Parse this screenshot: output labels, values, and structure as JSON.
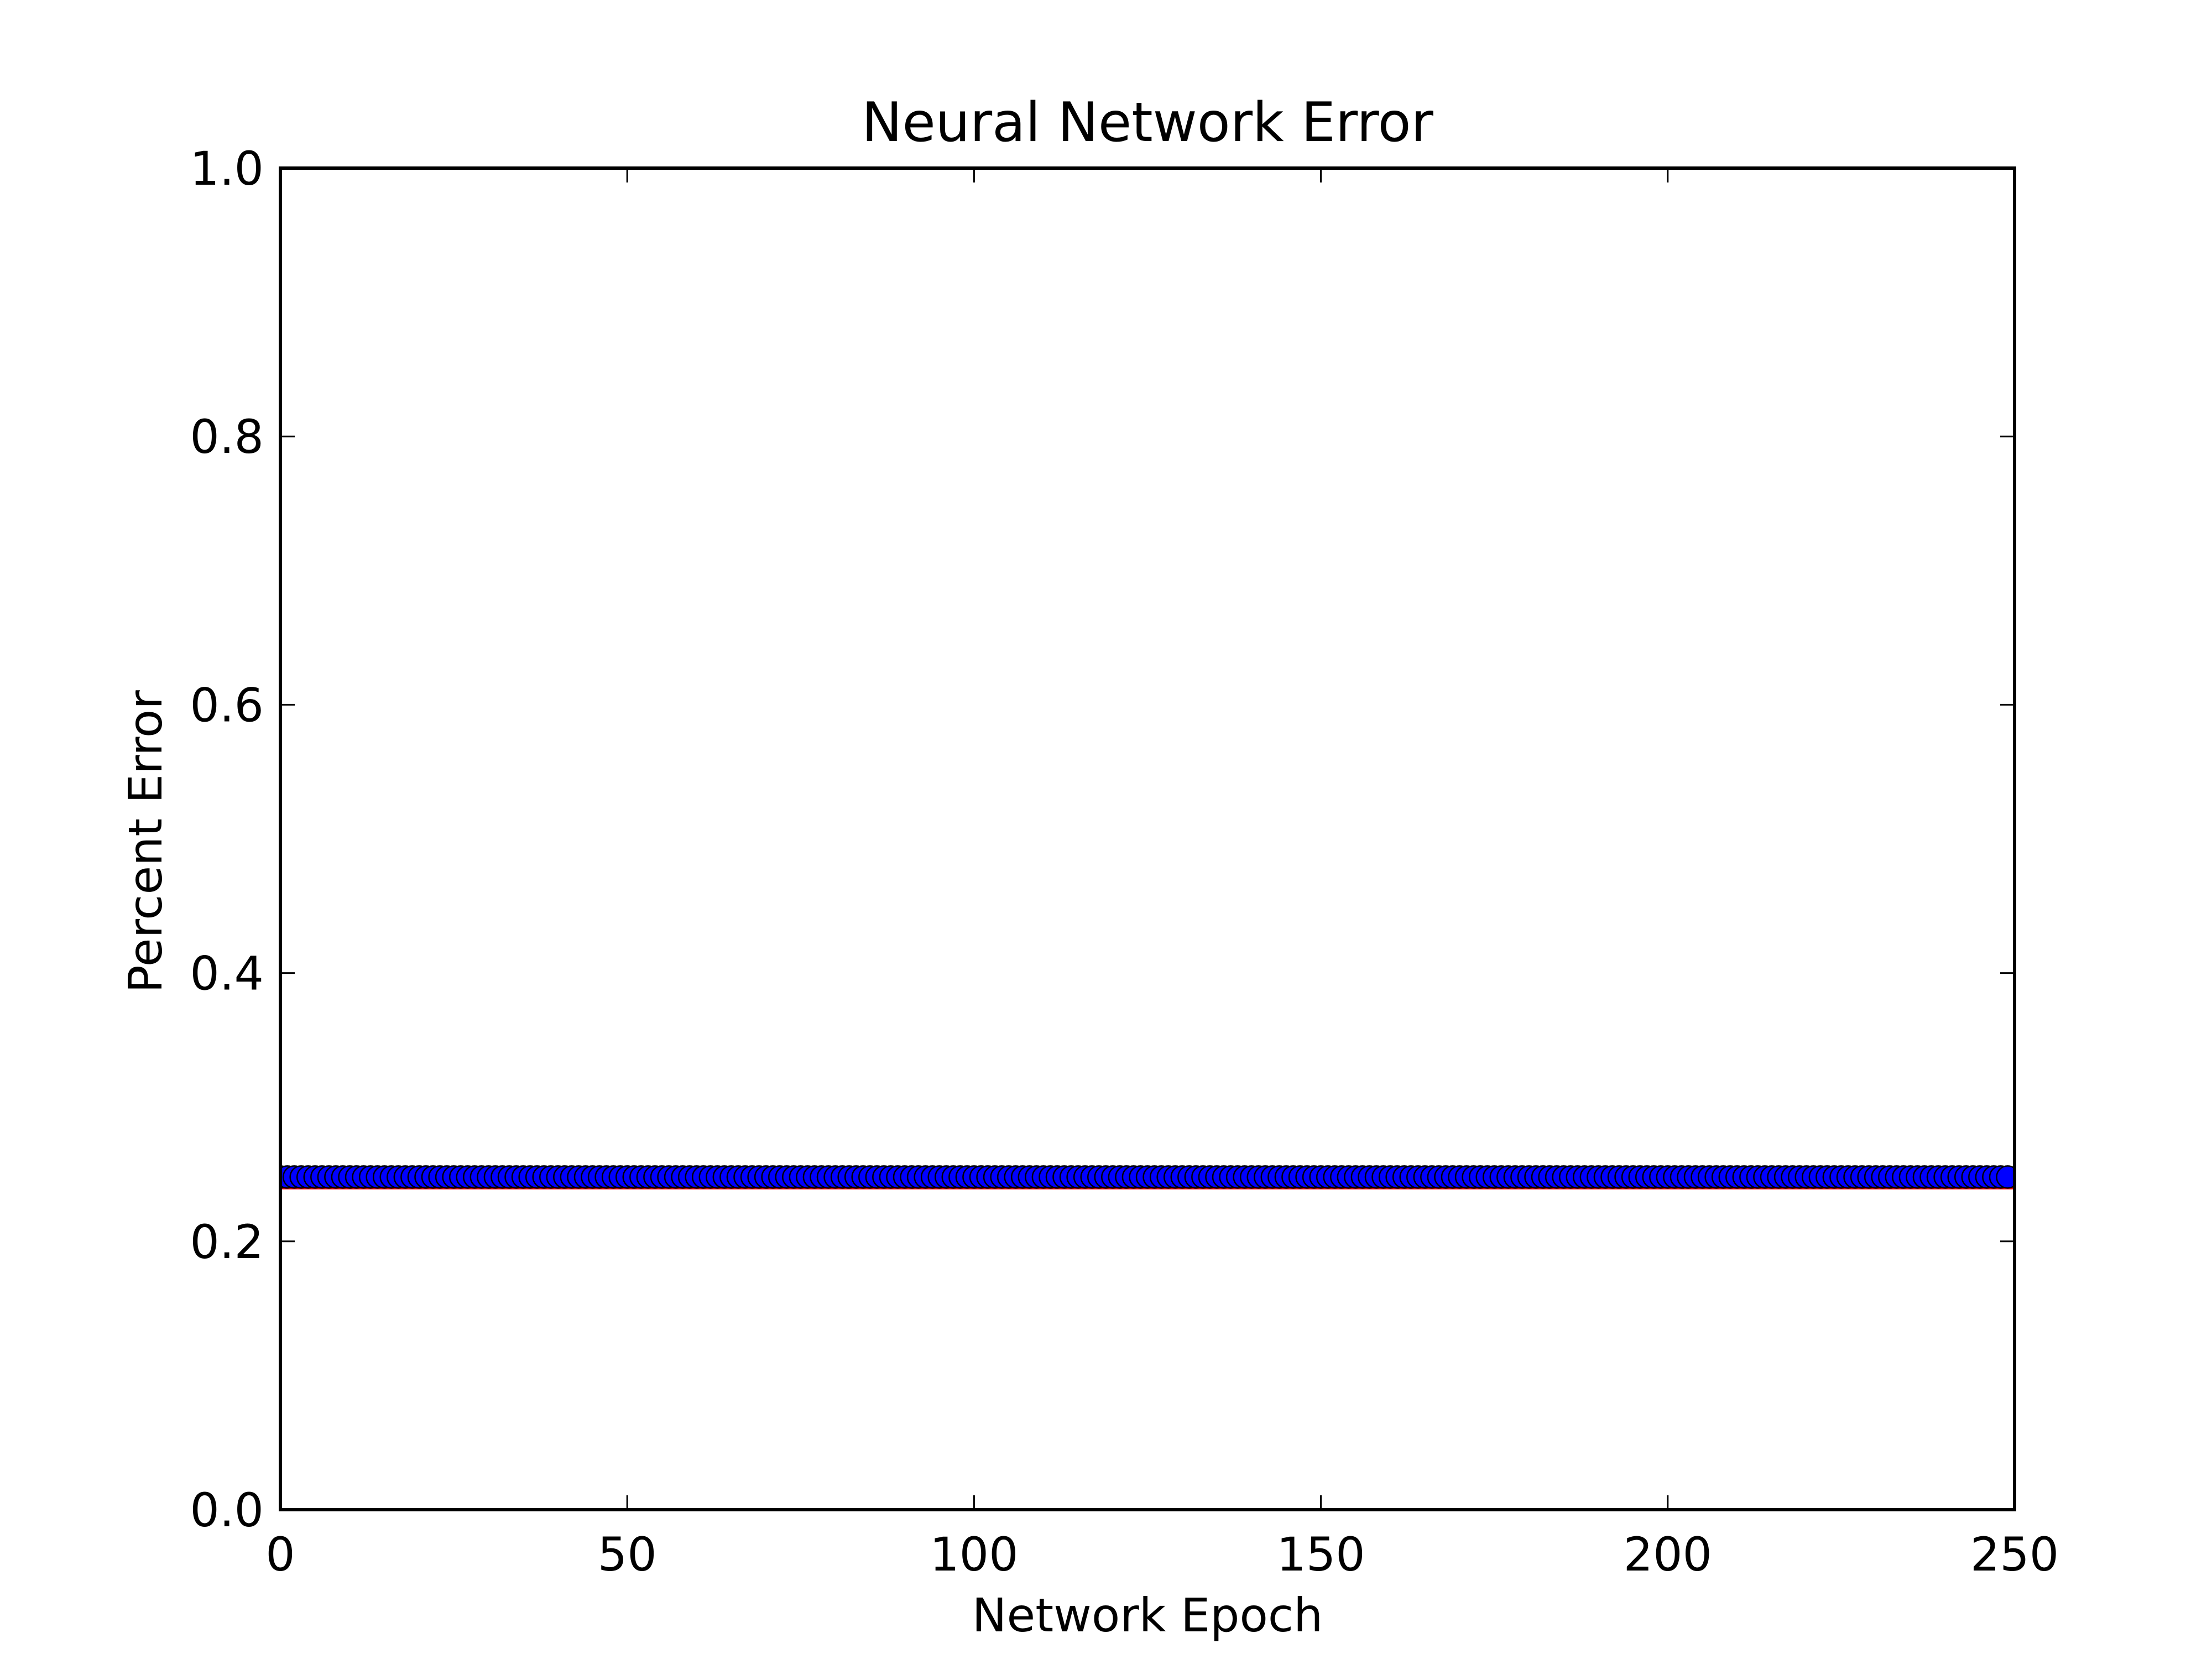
{
  "chart_data": {
    "type": "scatter",
    "title": "Neural Network Error",
    "xlabel": "Network Epoch",
    "ylabel": "Percent Error",
    "xlim": [
      0,
      250
    ],
    "ylim": [
      0.0,
      1.0
    ],
    "x_ticks": [
      0,
      50,
      100,
      150,
      200,
      250
    ],
    "x_tick_labels": [
      "0",
      "50",
      "100",
      "150",
      "200",
      "250"
    ],
    "y_ticks": [
      0.0,
      0.2,
      0.4,
      0.6,
      0.8,
      1.0
    ],
    "y_tick_labels": [
      "0.0",
      "0.2",
      "0.4",
      "0.6",
      "0.8",
      "1.0"
    ],
    "grid": false,
    "series": [
      {
        "marker": "circle",
        "color": "#0000ff",
        "edge_color": "#000000",
        "x_start": 0,
        "x_end": 249,
        "x_step": 1,
        "y": 0.248
      }
    ],
    "reference_line": {
      "y": 0.24,
      "color": "#ff0000"
    },
    "colors": {
      "axes": "#000000",
      "background": "#ffffff"
    }
  }
}
